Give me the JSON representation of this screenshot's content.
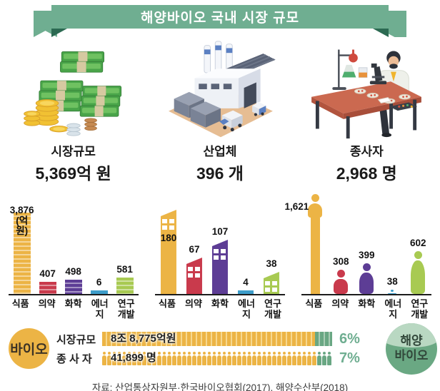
{
  "banner": {
    "title": "해양바이오 국내 시장 규모"
  },
  "stats": [
    {
      "icon": "money-stacks-icon",
      "label": "시장규모",
      "value": "5,369억 원"
    },
    {
      "icon": "factory-icon",
      "label": "산업체",
      "value": "396 개"
    },
    {
      "icon": "researcher-icon",
      "label": "종사자",
      "value": "2,968 명"
    }
  ],
  "chart_data": [
    {
      "type": "bar",
      "style": "money",
      "group": "시장규모",
      "unit": "억원",
      "categories": [
        "식품",
        "의약",
        "화학",
        "에너지",
        "연구\n개발"
      ],
      "values": [
        3876,
        407,
        498,
        6,
        581
      ],
      "value_labels": [
        "3,876\n(억원)",
        "407",
        "498",
        "6",
        "581"
      ],
      "colors": [
        "#ecb445",
        "#c93a4c",
        "#5d3d95",
        "#3d9dca",
        "#a8ca52"
      ],
      "legend_position": "none",
      "grid": false
    },
    {
      "type": "bar",
      "style": "building",
      "group": "산업체",
      "unit": "개",
      "categories": [
        "식품",
        "의약",
        "화학",
        "에너지",
        "연구\n개발"
      ],
      "values": [
        180,
        67,
        107,
        4,
        38
      ],
      "value_labels": [
        "180",
        "67",
        "107",
        "4",
        "38"
      ],
      "colors": [
        "#ecb445",
        "#c93a4c",
        "#5d3d95",
        "#3d9dca",
        "#a8ca52"
      ],
      "legend_position": "none",
      "grid": false
    },
    {
      "type": "bar",
      "style": "person",
      "group": "종사자",
      "unit": "명",
      "categories": [
        "식품",
        "의약",
        "화학",
        "에너지",
        "연구\n개발"
      ],
      "values": [
        1621,
        308,
        399,
        38,
        602
      ],
      "value_labels": [
        "1,621",
        "308",
        "399",
        "38",
        "602"
      ],
      "colors": [
        "#ecb445",
        "#c93a4c",
        "#5d3d95",
        "#3d9dca",
        "#a8ca52"
      ],
      "legend_position": "none",
      "grid": false
    }
  ],
  "comparison": {
    "left_badge": "바이오",
    "right_badge_lines": [
      "해양",
      "바이오"
    ],
    "rows": [
      {
        "label": "시장규모",
        "value": "8조 8,775억원",
        "percent": "6%"
      },
      {
        "label": "종 사 자",
        "value": "41,899 명",
        "percent": "7%",
        "icon_total": 46,
        "icon_green": 3
      }
    ]
  },
  "source": "자료:  산업통상자원부·한국바이오협회(2017), 해양수산부(2018)",
  "colors": {
    "banner_green": "#6fae91",
    "banner_fold": "#2c6a52",
    "accent_yellow": "#ecb445",
    "compare_green": "#69a783",
    "percent_green": "#6fae91",
    "bar_yellow": "#ecb445",
    "bar_red": "#c93a4c",
    "bar_purple": "#5d3d95",
    "bar_blue": "#3d9dca",
    "bar_green": "#a8ca52",
    "ink": "#1a1a1a"
  }
}
